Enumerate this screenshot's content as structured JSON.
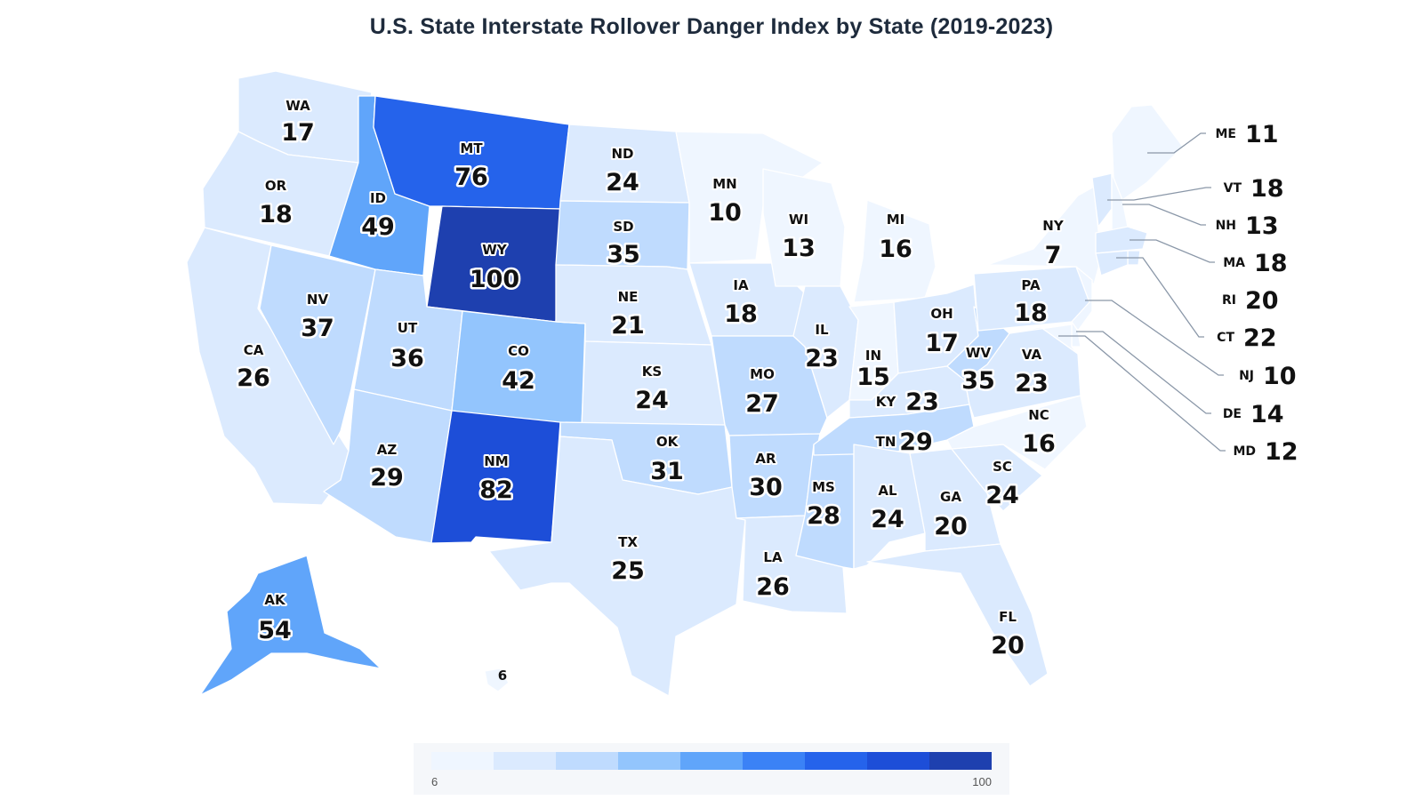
{
  "title": "U.S. State Interstate Rollover Danger Index by State (2019-2023)",
  "legend": {
    "min_label": "6",
    "max_label": "100",
    "color_steps": [
      "#eff6ff",
      "#dbeafe",
      "#bfdbfe",
      "#93c5fd",
      "#60a5fa",
      "#3b82f6",
      "#2563eb",
      "#1d4ed8",
      "#1e40af"
    ]
  },
  "chart_data": {
    "type": "choropleth",
    "title": "U.S. State Interstate Rollover Danger Index by State (2019-2023)",
    "value_range": [
      6,
      100
    ],
    "states": [
      {
        "code": "WA",
        "value": 17
      },
      {
        "code": "OR",
        "value": 18
      },
      {
        "code": "CA",
        "value": 26
      },
      {
        "code": "NV",
        "value": 37
      },
      {
        "code": "ID",
        "value": 49
      },
      {
        "code": "MT",
        "value": 76
      },
      {
        "code": "WY",
        "value": 100
      },
      {
        "code": "UT",
        "value": 36
      },
      {
        "code": "AZ",
        "value": 29
      },
      {
        "code": "CO",
        "value": 42
      },
      {
        "code": "NM",
        "value": 82
      },
      {
        "code": "ND",
        "value": 24
      },
      {
        "code": "SD",
        "value": 35
      },
      {
        "code": "NE",
        "value": 21
      },
      {
        "code": "KS",
        "value": 24
      },
      {
        "code": "OK",
        "value": 31
      },
      {
        "code": "TX",
        "value": 25
      },
      {
        "code": "MN",
        "value": 10
      },
      {
        "code": "IA",
        "value": 18
      },
      {
        "code": "MO",
        "value": 27
      },
      {
        "code": "AR",
        "value": 30
      },
      {
        "code": "LA",
        "value": 26
      },
      {
        "code": "WI",
        "value": 13
      },
      {
        "code": "IL",
        "value": 23
      },
      {
        "code": "MS",
        "value": 28
      },
      {
        "code": "MI",
        "value": 16
      },
      {
        "code": "IN",
        "value": 15
      },
      {
        "code": "KY",
        "value": 23
      },
      {
        "code": "TN",
        "value": 29
      },
      {
        "code": "AL",
        "value": 24
      },
      {
        "code": "OH",
        "value": 17
      },
      {
        "code": "WV",
        "value": 35
      },
      {
        "code": "GA",
        "value": 20
      },
      {
        "code": "FL",
        "value": 20
      },
      {
        "code": "SC",
        "value": 24
      },
      {
        "code": "NC",
        "value": 16
      },
      {
        "code": "VA",
        "value": 23
      },
      {
        "code": "PA",
        "value": 18
      },
      {
        "code": "NY",
        "value": 7
      },
      {
        "code": "ME",
        "value": 11
      },
      {
        "code": "VT",
        "value": 18
      },
      {
        "code": "NH",
        "value": 13
      },
      {
        "code": "MA",
        "value": 18
      },
      {
        "code": "RI",
        "value": 20
      },
      {
        "code": "CT",
        "value": 22
      },
      {
        "code": "NJ",
        "value": 10
      },
      {
        "code": "DE",
        "value": 14
      },
      {
        "code": "MD",
        "value": 12
      },
      {
        "code": "AK",
        "value": 54
      },
      {
        "code": "HI",
        "value": 6
      }
    ]
  }
}
